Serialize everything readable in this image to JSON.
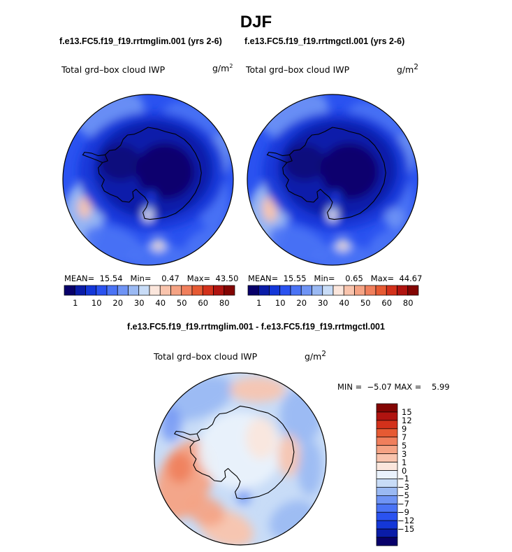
{
  "title": "DJF",
  "left_case": "f.e13.FC5.f19_f19.rrtmglim.001 (yrs 2-6)",
  "right_case": "f.e13.FC5.f19_f19.rrtmgctl.001 (yrs 2-6)",
  "diff_title": "f.e13.FC5.f19_f19.rrtmglim.001 - f.e13.FC5.f19_f19.rrtmgctl.001",
  "variable": "Total grd–box cloud IWP",
  "unit_base": "g/m",
  "unit_exp": "2",
  "panels": {
    "left": {
      "mean_label": "MEAN=",
      "mean": "15.54",
      "min_label": "Min=",
      "min": "0.47",
      "max_label": "Max=",
      "max": "43.50"
    },
    "right": {
      "mean_label": "MEAN=",
      "mean": "15.55",
      "min_label": "Min=",
      "min": "0.65",
      "max_label": "Max=",
      "max": "44.67"
    },
    "diff": {
      "min_label": "MIN =",
      "min": "−5.07",
      "max_label": "MAX =",
      "max": "5.99"
    }
  },
  "colorbar_main": {
    "colors": [
      "#08006a",
      "#0a1ca8",
      "#1437d8",
      "#2a52f0",
      "#4a73f5",
      "#6f94f5",
      "#9ab9f3",
      "#c8dcf7",
      "#fbe6dc",
      "#f9c4ad",
      "#f5a384",
      "#f07f5c",
      "#e65a33",
      "#d3311b",
      "#b01410",
      "#830503"
    ],
    "tick_labels": [
      "1",
      "10",
      "20",
      "30",
      "40",
      "50",
      "60",
      "80"
    ]
  },
  "colorbar_diff": {
    "colors": [
      "#830503",
      "#b01410",
      "#d3311b",
      "#e65a33",
      "#f07f5c",
      "#f5a384",
      "#f9c4ad",
      "#fbe6dc",
      "#eaf2fc",
      "#c8dcf7",
      "#9ab9f3",
      "#6f94f5",
      "#4a73f5",
      "#2a52f0",
      "#1437d8",
      "#0a1ca8",
      "#08006a"
    ],
    "tick_labels": [
      "15",
      "12",
      "9",
      "7",
      "5",
      "3",
      "1",
      "0",
      "−1",
      "−3",
      "−5",
      "−7",
      "−9",
      "−12",
      "−15"
    ]
  }
}
